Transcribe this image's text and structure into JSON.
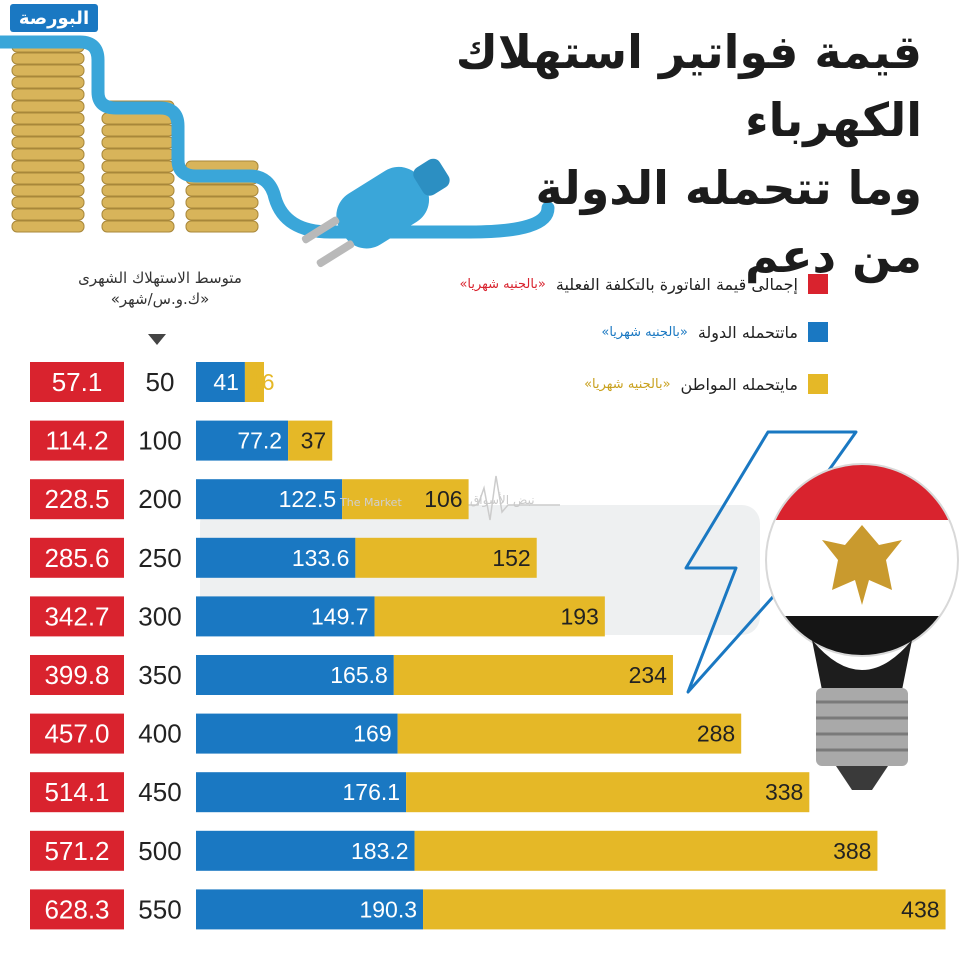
{
  "brand": {
    "logo_text": "البورصة"
  },
  "title": {
    "lines": [
      "قيمة فواتير استهلاك الكهرباء",
      "وما تتحمله الدولة",
      "من دعم"
    ]
  },
  "column_header": {
    "line1": "متوسط الاستهلاك الشهرى",
    "line2": "«ك.و.س/شهر»"
  },
  "watermark": {
    "ticker": "نبض الأسواق",
    "subtitle": "The Market"
  },
  "legend": {
    "items": [
      {
        "label": "إجمالى قيمة الفاتورة بالتكلفة الفعلية",
        "unit": "«بالجنيه شهريا»",
        "color": "#d9232e"
      },
      {
        "label": "ماتتحمله الدولة",
        "unit": "«بالجنيه شهريا»",
        "color": "#1a78c2"
      },
      {
        "label": "مايتحمله المواطن",
        "unit": "«بالجنيه شهريا»",
        "color": "#e5b827"
      }
    ]
  },
  "colors": {
    "total": "#d9232e",
    "state": "#1a78c2",
    "citizen": "#e5b827"
  },
  "chart_data": {
    "type": "bar",
    "stacked": true,
    "orientation": "horizontal",
    "categories": [
      "50",
      "100",
      "200",
      "250",
      "300",
      "350",
      "400",
      "450",
      "500",
      "550"
    ],
    "totals": [
      "57.1",
      "114.2",
      "228.5",
      "285.6",
      "342.7",
      "399.8",
      "457.0",
      "514.1",
      "571.2",
      "628.3"
    ],
    "series": [
      {
        "name": "ماتتحمله الدولة",
        "values": [
          41,
          77.2,
          122.5,
          133.6,
          149.7,
          165.8,
          169,
          176.1,
          183.2,
          190.3
        ]
      },
      {
        "name": "مايتحمله المواطن",
        "values": [
          16,
          37,
          106,
          152,
          193,
          234,
          288,
          338,
          388,
          438
        ]
      }
    ]
  }
}
